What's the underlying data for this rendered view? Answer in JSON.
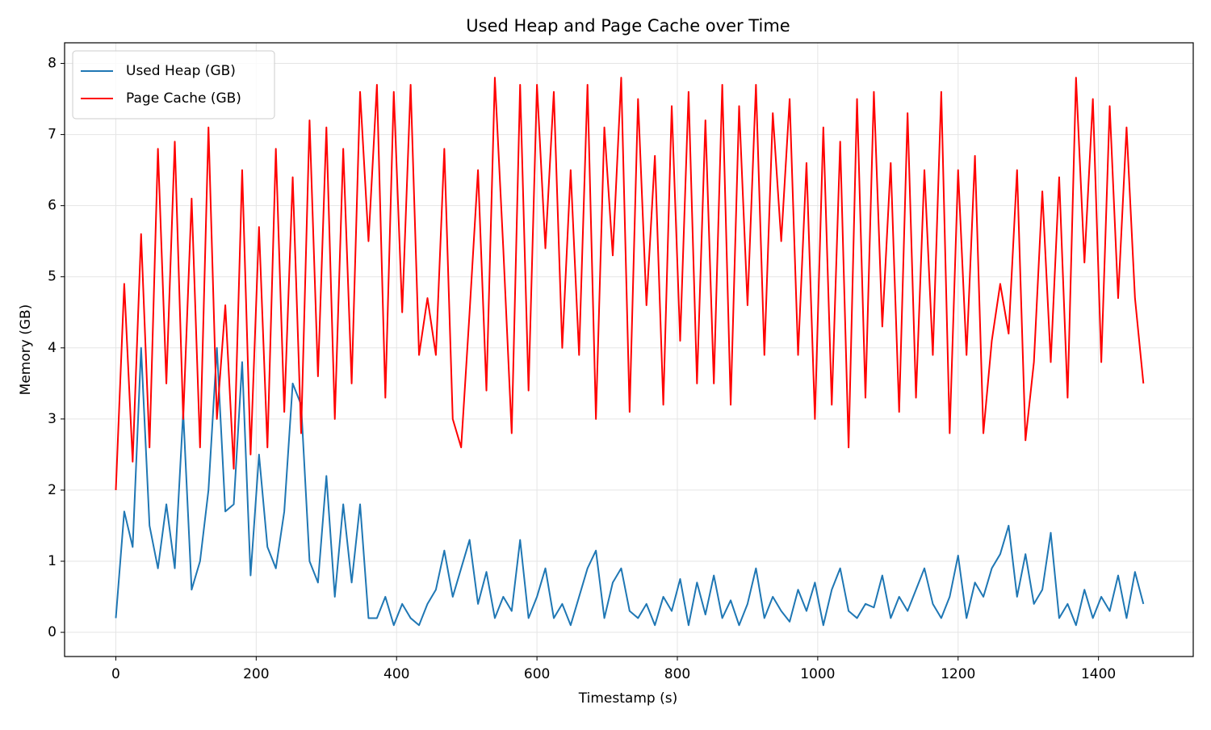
{
  "chart_data": {
    "type": "line",
    "title": "Used Heap and Page Cache over Time",
    "x_label": "Timestamp (s)",
    "y_label": "Memory (GB)",
    "x": [
      0,
      12,
      24,
      36,
      48,
      60,
      72,
      84,
      96,
      108,
      120,
      132,
      144,
      156,
      168,
      180,
      192,
      204,
      216,
      228,
      240,
      252,
      264,
      276,
      288,
      300,
      312,
      324,
      336,
      348,
      360,
      372,
      384,
      396,
      408,
      420,
      432,
      444,
      456,
      468,
      480,
      492,
      504,
      516,
      528,
      540,
      552,
      564,
      576,
      588,
      600,
      612,
      624,
      636,
      648,
      660,
      672,
      684,
      696,
      708,
      720,
      732,
      744,
      756,
      768,
      780,
      792,
      804,
      816,
      828,
      840,
      852,
      864,
      876,
      888,
      900,
      912,
      924,
      936,
      948,
      960,
      972,
      984,
      996,
      1008,
      1020,
      1032,
      1044,
      1056,
      1068,
      1080,
      1092,
      1104,
      1116,
      1128,
      1140,
      1152,
      1164,
      1176,
      1188,
      1200,
      1212,
      1224,
      1236,
      1248,
      1260,
      1272,
      1284,
      1296,
      1308,
      1320,
      1332,
      1344,
      1356,
      1368,
      1380,
      1392,
      1404,
      1416,
      1428,
      1440,
      1452,
      1464
    ],
    "series": [
      {
        "name": "Used Heap (GB)",
        "color": "#1f77b4",
        "values": [
          0.2,
          1.7,
          1.2,
          4.0,
          1.5,
          0.9,
          1.8,
          0.9,
          3.1,
          0.6,
          1.0,
          2.0,
          4.0,
          1.7,
          1.8,
          3.8,
          0.8,
          2.5,
          1.2,
          0.9,
          1.7,
          3.5,
          3.2,
          1.0,
          0.7,
          2.2,
          0.5,
          1.8,
          0.7,
          1.8,
          0.2,
          0.2,
          0.5,
          0.1,
          0.4,
          0.2,
          0.1,
          0.4,
          0.6,
          1.15,
          0.5,
          0.9,
          1.3,
          0.4,
          0.85,
          0.2,
          0.5,
          0.3,
          1.3,
          0.2,
          0.5,
          0.9,
          0.2,
          0.4,
          0.1,
          0.5,
          0.9,
          1.15,
          0.2,
          0.7,
          0.9,
          0.3,
          0.2,
          0.4,
          0.1,
          0.5,
          0.3,
          0.75,
          0.1,
          0.7,
          0.25,
          0.8,
          0.2,
          0.45,
          0.1,
          0.4,
          0.9,
          0.2,
          0.5,
          0.3,
          0.15,
          0.6,
          0.3,
          0.7,
          0.1,
          0.6,
          0.9,
          0.3,
          0.2,
          0.4,
          0.35,
          0.8,
          0.2,
          0.5,
          0.3,
          0.6,
          0.9,
          0.4,
          0.2,
          0.5,
          1.08,
          0.2,
          0.7,
          0.5,
          0.9,
          1.1,
          1.5,
          0.5,
          1.1,
          0.4,
          0.6,
          1.4,
          0.2,
          0.4,
          0.1,
          0.6,
          0.2,
          0.5,
          0.3,
          0.8,
          0.2,
          0.85,
          0.4
        ]
      },
      {
        "name": "Page Cache (GB)",
        "color": "#ff0000",
        "values": [
          2.0,
          4.9,
          2.4,
          5.6,
          2.6,
          6.8,
          3.5,
          6.9,
          3.0,
          6.1,
          2.6,
          7.1,
          3.0,
          4.6,
          2.3,
          6.5,
          2.5,
          5.7,
          2.6,
          6.8,
          3.1,
          6.4,
          2.8,
          7.2,
          3.6,
          7.1,
          3.0,
          6.8,
          3.5,
          7.6,
          5.5,
          7.7,
          3.3,
          7.6,
          4.5,
          7.7,
          3.9,
          4.7,
          3.9,
          6.8,
          3.0,
          2.6,
          4.5,
          6.5,
          3.4,
          7.8,
          5.4,
          2.8,
          7.7,
          3.4,
          7.7,
          5.4,
          7.6,
          4.0,
          6.5,
          3.9,
          7.7,
          3.0,
          7.1,
          5.3,
          7.8,
          3.1,
          7.5,
          4.6,
          6.7,
          3.2,
          7.4,
          4.1,
          7.6,
          3.5,
          7.2,
          3.5,
          7.7,
          3.2,
          7.4,
          4.6,
          7.7,
          3.9,
          7.3,
          5.5,
          7.5,
          3.9,
          6.6,
          3.0,
          7.1,
          3.2,
          6.9,
          2.6,
          7.5,
          3.3,
          7.6,
          4.3,
          6.6,
          3.1,
          7.3,
          3.3,
          6.5,
          3.9,
          7.6,
          2.8,
          6.5,
          3.9,
          6.7,
          2.8,
          4.1,
          4.9,
          4.2,
          6.5,
          2.7,
          3.8,
          6.2,
          3.8,
          6.4,
          3.3,
          7.8,
          5.2,
          7.5,
          3.8,
          7.4,
          4.7,
          7.1,
          4.7,
          3.5
        ]
      }
    ],
    "xlim": [
      -73,
      1535
    ],
    "ylim": [
      -0.34,
      8.29
    ],
    "xticks": [
      0,
      200,
      400,
      600,
      800,
      1000,
      1200,
      1400
    ],
    "yticks": [
      0,
      1,
      2,
      3,
      4,
      5,
      6,
      7,
      8
    ],
    "grid": true,
    "legend": "upper left"
  }
}
